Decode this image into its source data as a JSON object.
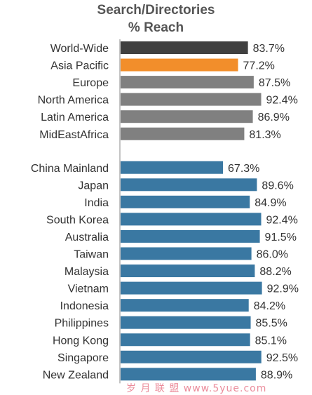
{
  "chart_data": {
    "type": "bar",
    "orientation": "horizontal",
    "title": "Search/Directories",
    "subtitle": "% Reach",
    "xlim": [
      0,
      100
    ],
    "grid": false,
    "categories": [
      "World-Wide",
      "Asia Pacific",
      "Europe",
      "North America",
      "Latin America",
      "MidEastAfrica",
      "China Mainland",
      "Japan",
      "India",
      "South Korea",
      "Australia",
      "Taiwan",
      "Malaysia",
      "Vietnam",
      "Indonesia",
      "Philippines",
      "Hong Kong",
      "Singapore",
      "New Zealand"
    ],
    "values": [
      83.7,
      77.2,
      87.5,
      92.4,
      86.9,
      81.3,
      67.3,
      89.6,
      84.9,
      92.4,
      91.5,
      86.0,
      88.2,
      92.9,
      84.2,
      85.5,
      85.1,
      92.5,
      88.9
    ],
    "value_labels": [
      "83.7%",
      "77.2%",
      "87.5%",
      "92.4%",
      "86.9%",
      "81.3%",
      "67.3%",
      "89.6%",
      "84.9%",
      "92.4%",
      "91.5%",
      "86.0%",
      "88.2%",
      "92.9%",
      "84.2%",
      "85.5%",
      "85.1%",
      "92.5%",
      "88.9%"
    ],
    "bar_colors": [
      "#404040",
      "#f28e2b",
      "#808080",
      "#808080",
      "#808080",
      "#808080",
      "#3a78a2",
      "#3a78a2",
      "#3a78a2",
      "#3a78a2",
      "#3a78a2",
      "#3a78a2",
      "#3a78a2",
      "#3a78a2",
      "#3a78a2",
      "#3a78a2",
      "#3a78a2",
      "#3a78a2",
      "#3a78a2"
    ],
    "groups": [
      "regions",
      "regions",
      "regions",
      "regions",
      "regions",
      "regions",
      "markets",
      "markets",
      "markets",
      "markets",
      "markets",
      "markets",
      "markets",
      "markets",
      "markets",
      "markets",
      "markets",
      "markets",
      "markets"
    ]
  },
  "watermark": "岁 月 联 盟  www.5yue.com",
  "colors": {
    "label_text": "#333333",
    "value_text": "#333333",
    "axis": "#888888"
  }
}
